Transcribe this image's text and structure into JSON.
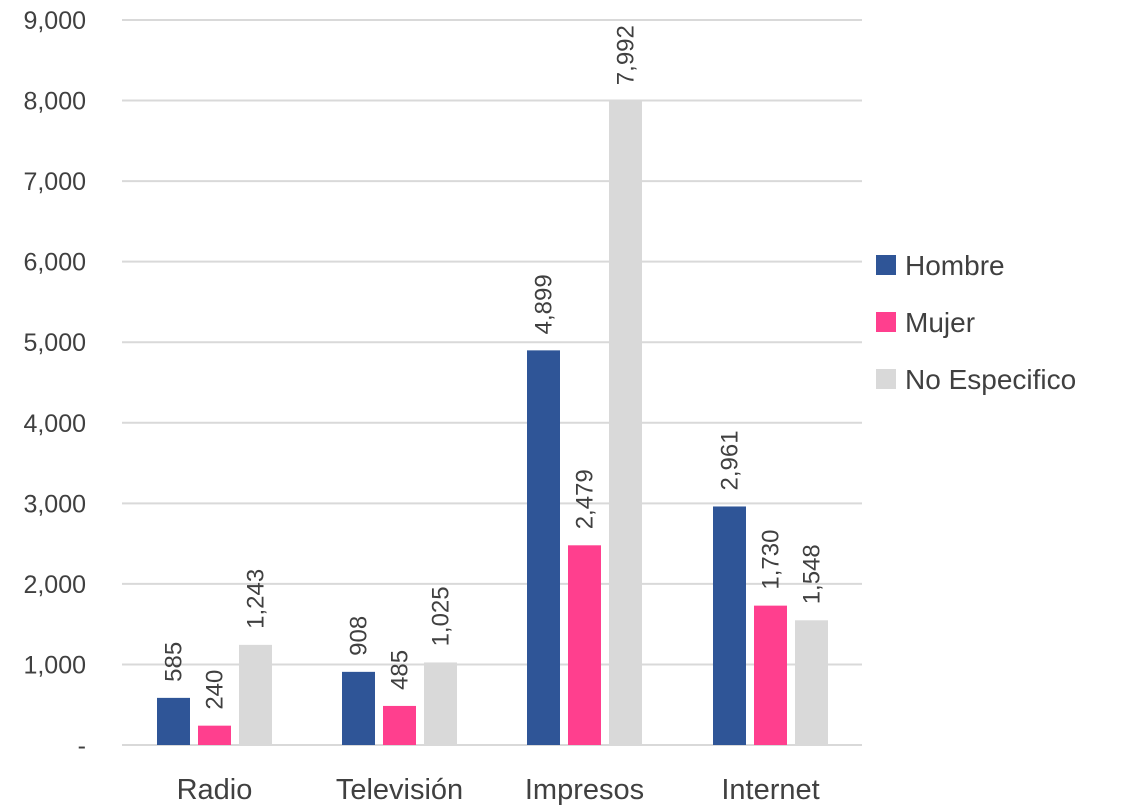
{
  "chart_data": {
    "type": "bar",
    "title": "",
    "xlabel": "",
    "ylabel": "",
    "categories": [
      "Radio",
      "Televisión",
      "Impresos",
      "Internet"
    ],
    "series": [
      {
        "name": "Hombre",
        "color": "#2F5597",
        "values": [
          585,
          908,
          4899,
          2961
        ],
        "labels": [
          "585",
          "908",
          "4,899",
          "2,961"
        ]
      },
      {
        "name": "Mujer",
        "color": "#FF3F8E",
        "values": [
          240,
          485,
          2479,
          1730
        ],
        "labels": [
          "240",
          "485",
          "2,479",
          "1,730"
        ]
      },
      {
        "name": "No Especifico",
        "color": "#D9D9D9",
        "values": [
          1243,
          1025,
          7992,
          1548
        ],
        "labels": [
          "1,243",
          "1,025",
          "7,992",
          "1,548"
        ]
      }
    ],
    "ylim": [
      0,
      9000
    ],
    "yticks": [
      0,
      1000,
      2000,
      3000,
      4000,
      5000,
      6000,
      7000,
      8000,
      9000
    ],
    "ytick_labels": [
      "-",
      "1,000",
      "2,000",
      "3,000",
      "4,000",
      "5,000",
      "6,000",
      "7,000",
      "8,000",
      "9,000"
    ],
    "grid": true,
    "gridline_color": "#D9D9D9",
    "legend_position": "right",
    "data_labels_rotation": "vertical"
  }
}
